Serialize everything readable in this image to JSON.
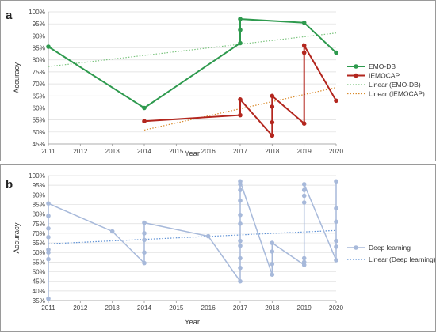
{
  "chart_data": [
    {
      "panel": "a",
      "type": "line",
      "xlabel": "Year",
      "ylabel": "Accuracy",
      "xlim": [
        2011,
        2020
      ],
      "ylim": [
        45,
        100
      ],
      "x_ticks": [
        "2011",
        "2012",
        "2013",
        "2014",
        "2015",
        "2016",
        "2017",
        "2018",
        "2019",
        "2020"
      ],
      "y_ticks": [
        "45%",
        "50%",
        "55%",
        "60%",
        "65%",
        "70%",
        "75%",
        "80%",
        "85%",
        "90%",
        "95%",
        "100%"
      ],
      "grid": true,
      "legend_position": "right",
      "series": [
        {
          "name": "EMO-DB",
          "color": "#2e9a4e",
          "kind": "line-marker",
          "points": [
            [
              2011,
              85.5
            ],
            [
              2014,
              60
            ],
            [
              2017,
              87
            ],
            [
              2017,
              92.5
            ],
            [
              2017,
              97
            ],
            [
              2019,
              95.5
            ],
            [
              2020,
              83
            ]
          ]
        },
        {
          "name": "IEMOCAP",
          "color": "#b3261e",
          "kind": "line-marker",
          "points": [
            [
              2014,
              54.5
            ],
            [
              2017,
              57
            ],
            [
              2017,
              63.5
            ],
            [
              2018,
              48.5
            ],
            [
              2018,
              54
            ],
            [
              2018,
              60.5
            ],
            [
              2018,
              65
            ],
            [
              2019,
              53.5
            ],
            [
              2019,
              83
            ],
            [
              2019,
              86
            ],
            [
              2020,
              63
            ]
          ]
        },
        {
          "name": "Linear (EMO-DB)",
          "color": "#7cc47f",
          "kind": "trend",
          "points": [
            [
              2011,
              77.2
            ],
            [
              2020,
              91.2
            ]
          ]
        },
        {
          "name": "Linear (IEMOCAP)",
          "color": "#d98a2b",
          "kind": "trend",
          "points": [
            [
              2014,
              50.8
            ],
            [
              2020,
              68.5
            ]
          ]
        }
      ]
    },
    {
      "panel": "b",
      "type": "line",
      "xlabel": "Year",
      "ylabel": "Accuracy",
      "xlim": [
        2011,
        2020
      ],
      "ylim": [
        35,
        100
      ],
      "x_ticks": [
        "2011",
        "2012",
        "2013",
        "2014",
        "2015",
        "2016",
        "2017",
        "2018",
        "2019",
        "2020"
      ],
      "y_ticks": [
        "35%",
        "40%",
        "45%",
        "50%",
        "55%",
        "60%",
        "65%",
        "70%",
        "75%",
        "80%",
        "85%",
        "90%",
        "95%",
        "100%"
      ],
      "grid": true,
      "legend_position": "right",
      "series": [
        {
          "name": "Deep learning",
          "color": "#a7b9da",
          "kind": "line-marker",
          "points": [
            [
              2011,
              36
            ],
            [
              2011,
              56.5
            ],
            [
              2011,
              60
            ],
            [
              2011,
              61.5
            ],
            [
              2011,
              68
            ],
            [
              2011,
              72.5
            ],
            [
              2011,
              79
            ],
            [
              2011,
              85.5
            ],
            [
              2013,
              71
            ],
            [
              2014,
              54.5
            ],
            [
              2014,
              60
            ],
            [
              2014,
              66.5
            ],
            [
              2014,
              70
            ],
            [
              2014,
              75.5
            ],
            [
              2016,
              68.5
            ],
            [
              2017,
              45
            ],
            [
              2017,
              52
            ],
            [
              2017,
              57
            ],
            [
              2017,
              63.5
            ],
            [
              2017,
              66
            ],
            [
              2017,
              75
            ],
            [
              2017,
              79.5
            ],
            [
              2017,
              87
            ],
            [
              2017,
              92.5
            ],
            [
              2017,
              95.5
            ],
            [
              2017,
              97
            ],
            [
              2018,
              48.5
            ],
            [
              2018,
              54
            ],
            [
              2018,
              60.5
            ],
            [
              2018,
              65
            ],
            [
              2019,
              53.5
            ],
            [
              2019,
              55
            ],
            [
              2019,
              57
            ],
            [
              2019,
              86
            ],
            [
              2019,
              89.5
            ],
            [
              2019,
              92.5
            ],
            [
              2019,
              95.5
            ],
            [
              2020,
              56
            ],
            [
              2020,
              63
            ],
            [
              2020,
              66
            ],
            [
              2020,
              76
            ],
            [
              2020,
              83
            ],
            [
              2020,
              97
            ]
          ]
        },
        {
          "name": "Linear (Deep learning)",
          "color": "#5b8fd4",
          "kind": "trend",
          "points": [
            [
              2011,
              64.5
            ],
            [
              2020,
              71.5
            ]
          ]
        }
      ]
    }
  ]
}
